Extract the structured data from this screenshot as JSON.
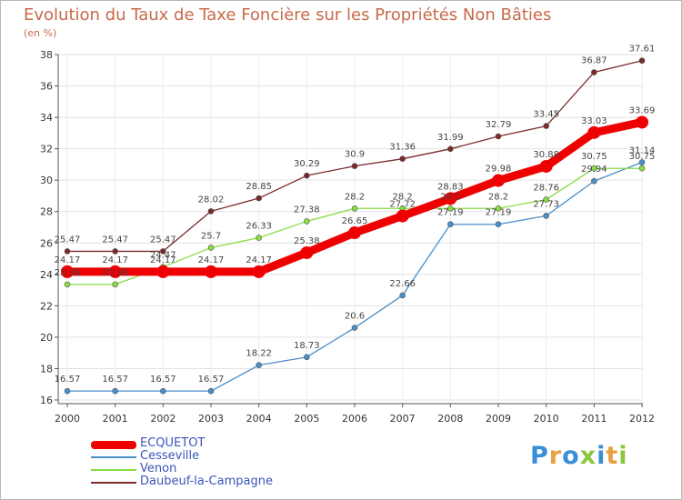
{
  "title": "Evolution du Taux de Taxe Foncière sur les Propriétés Non Bâties",
  "unit_label": "(en %)",
  "logo": {
    "letters": [
      "P",
      "r",
      "o",
      "x",
      "i",
      "t",
      "i"
    ],
    "colors": [
      "#3a8ed8",
      "#e8a040",
      "#3a8ed8",
      "#8cc63f",
      "#3a8ed8",
      "#e8a040",
      "#8cc63f"
    ]
  },
  "chart_data": {
    "type": "line",
    "title": "Evolution du Taux de Taxe Foncière sur les Propriétés Non Bâties",
    "ylabel": "(en %)",
    "x": [
      "2000",
      "2001",
      "2002",
      "2003",
      "2004",
      "2005",
      "2006",
      "2007",
      "2008",
      "2009",
      "2010",
      "2011",
      "2012"
    ],
    "ylim": [
      16,
      38
    ],
    "yticks": [
      16,
      18,
      20,
      22,
      24,
      26,
      28,
      30,
      32,
      34,
      36,
      38
    ],
    "grid": true,
    "legend_position": "bottom-left",
    "series": [
      {
        "name": "ECQUETOT",
        "color": "#ee0000",
        "emphasis": true,
        "values": [
          24.17,
          24.17,
          24.17,
          24.17,
          24.17,
          25.38,
          26.65,
          27.72,
          28.83,
          29.98,
          30.88,
          33.03,
          33.69
        ],
        "labels": [
          "24.17",
          "24.17",
          "24.17",
          "24.17",
          "24.17",
          "25.38",
          "26.65",
          "27.72",
          "28.83",
          "29.98",
          "30.88",
          "33.03",
          "33.69"
        ]
      },
      {
        "name": "Cesseville",
        "color": "#4a8ec8",
        "emphasis": false,
        "values": [
          16.57,
          16.57,
          16.57,
          16.57,
          18.22,
          18.73,
          20.6,
          22.66,
          27.19,
          27.19,
          27.73,
          29.94,
          31.14
        ],
        "labels": [
          "16.57",
          "16.57",
          "16.57",
          "16.57",
          "18.22",
          "18.73",
          "20.6",
          "22.66",
          "27.19",
          "27.19",
          "27.73",
          "29.94",
          "31.14"
        ]
      },
      {
        "name": "Venon",
        "color": "#88dd44",
        "emphasis": false,
        "values": [
          23.36,
          23.36,
          24.47,
          25.7,
          26.33,
          27.38,
          28.2,
          28.2,
          28.2,
          28.2,
          28.76,
          30.75,
          30.75
        ],
        "labels": [
          "23.36",
          "23.36",
          "24.47",
          "25.7",
          "26.33",
          "27.38",
          "28.2",
          "28.2",
          "28.2",
          "28.2",
          "28.76",
          "30.75",
          "30.75"
        ]
      },
      {
        "name": "Daubeuf-la-Campagne",
        "color": "#7a2a2a",
        "emphasis": false,
        "values": [
          25.47,
          25.47,
          25.47,
          28.02,
          28.85,
          30.29,
          30.9,
          31.36,
          31.99,
          32.79,
          33.45,
          36.87,
          37.61
        ],
        "labels": [
          "25.47",
          "25.47",
          "25.47",
          "28.02",
          "28.85",
          "30.29",
          "30.9",
          "31.36",
          "31.99",
          "32.79",
          "33.45",
          "36.87",
          "37.61"
        ]
      }
    ]
  }
}
